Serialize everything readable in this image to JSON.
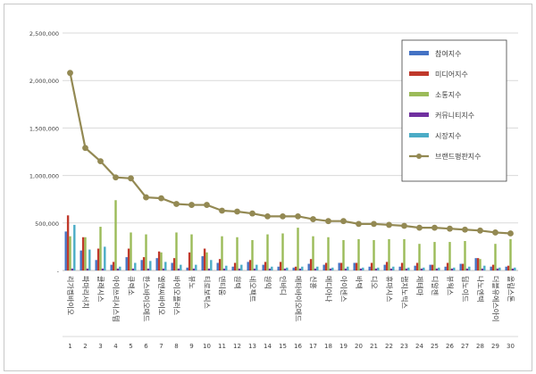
{
  "chart_data": {
    "type": "bar",
    "ylim": [
      0,
      2500000
    ],
    "yticks": [
      "-",
      "500,000",
      "1,000,000",
      "1,500,000",
      "2,000,000",
      "2,500,000"
    ],
    "grid": true,
    "legend_position": "top-right",
    "categories": [
      "리가켐바이오",
      "파마리서치",
      "클래시스",
      "아이쓰리시스템",
      "큐렉소",
      "한스바이오메드",
      "엘앤씨바이오",
      "바이오플러스",
      "뷰노",
      "티로보틱스",
      "덴티움",
      "원텍",
      "네오팩트",
      "원익",
      "인바디",
      "메타바이오메드",
      "신흥",
      "메디아나",
      "아이센스",
      "바텍",
      "디오",
      "휴마시스",
      "랩지노믹스",
      "제테마",
      "디알젠",
      "뷰웍스",
      "딥노이드",
      "나노엔텍",
      "더블유에스아이",
      "올림스톤"
    ],
    "category_numbers": [
      "1",
      "2",
      "3",
      "4",
      "5",
      "6",
      "7",
      "8",
      "9",
      "10",
      "11",
      "12",
      "13",
      "14",
      "15",
      "16",
      "17",
      "18",
      "19",
      "20",
      "21",
      "22",
      "23",
      "24",
      "25",
      "26",
      "27",
      "28",
      "29",
      "30"
    ],
    "series": [
      {
        "name": "참여지수",
        "color": "#4472c4",
        "values": [
          410000,
          210000,
          110000,
          60000,
          140000,
          110000,
          130000,
          80000,
          30000,
          150000,
          80000,
          40000,
          90000,
          60000,
          40000,
          30000,
          70000,
          60000,
          80000,
          80000,
          40000,
          60000,
          40000,
          50000,
          60000,
          40000,
          70000,
          130000,
          40000,
          40000
        ]
      },
      {
        "name": "미디어지수",
        "color": "#c0392b",
        "values": [
          580000,
          350000,
          230000,
          90000,
          230000,
          140000,
          200000,
          130000,
          190000,
          230000,
          120000,
          80000,
          110000,
          90000,
          90000,
          40000,
          120000,
          80000,
          80000,
          80000,
          80000,
          90000,
          80000,
          80000,
          60000,
          80000,
          70000,
          130000,
          60000,
          50000
        ]
      },
      {
        "name": "소통지수",
        "color": "#9bbb59",
        "values": [
          360000,
          350000,
          460000,
          740000,
          400000,
          380000,
          190000,
          400000,
          380000,
          190000,
          360000,
          350000,
          320000,
          380000,
          390000,
          450000,
          360000,
          350000,
          320000,
          330000,
          320000,
          330000,
          330000,
          280000,
          300000,
          300000,
          310000,
          120000,
          280000,
          330000
        ]
      },
      {
        "name": "커뮤니티지수",
        "color": "#7030a0",
        "values": [
          20000,
          20000,
          20000,
          20000,
          20000,
          20000,
          20000,
          20000,
          20000,
          20000,
          20000,
          20000,
          20000,
          20000,
          20000,
          20000,
          20000,
          20000,
          20000,
          20000,
          20000,
          20000,
          20000,
          20000,
          20000,
          20000,
          20000,
          20000,
          20000,
          20000
        ]
      },
      {
        "name": "시장지수",
        "color": "#4bacc6",
        "values": [
          480000,
          220000,
          250000,
          40000,
          80000,
          100000,
          90000,
          60000,
          60000,
          110000,
          50000,
          60000,
          60000,
          40000,
          30000,
          40000,
          40000,
          30000,
          40000,
          30000,
          30000,
          40000,
          30000,
          30000,
          30000,
          30000,
          40000,
          50000,
          30000,
          30000
        ]
      }
    ],
    "line_series": {
      "name": "브랜드평판지수",
      "color": "#938953",
      "values": [
        2080000,
        1290000,
        1150000,
        980000,
        970000,
        770000,
        760000,
        700000,
        690000,
        690000,
        630000,
        620000,
        600000,
        570000,
        570000,
        570000,
        540000,
        520000,
        520000,
        490000,
        490000,
        480000,
        470000,
        450000,
        450000,
        440000,
        430000,
        420000,
        400000,
        390000
      ]
    }
  }
}
